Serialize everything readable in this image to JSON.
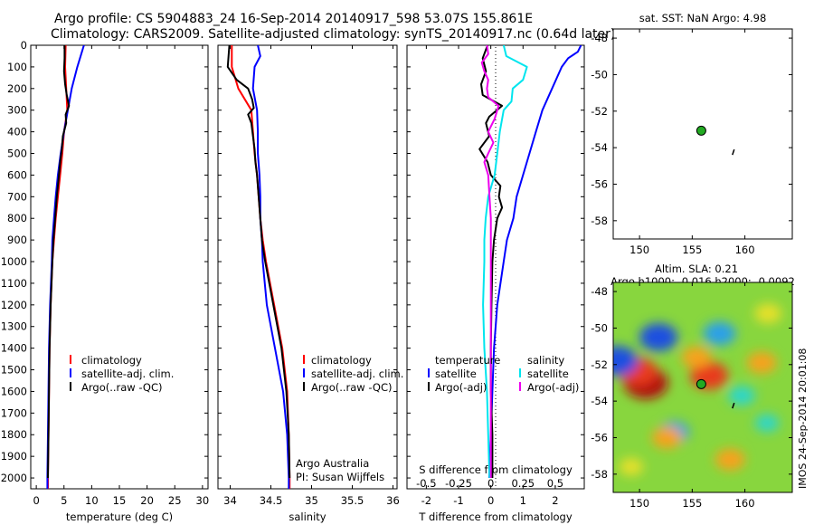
{
  "header": {
    "line1": "Argo profile: CS 5904883_24 16-Sep-2014 20140917_598 53.07S 155.861E",
    "line2": "Climatology: CARS2009. Satellite-adjusted climatology: synTS_20140917.nc (0.64d later)"
  },
  "colors": {
    "climatology": "#ff0000",
    "satellite": "#0000ff",
    "argo": "#000000",
    "sal_satellite": "#00e5ee",
    "sal_argo": "#ee00ee"
  },
  "depth_ticks": [
    "0",
    "100",
    "200",
    "300",
    "400",
    "500",
    "600",
    "700",
    "800",
    "900",
    "1000",
    "1100",
    "1200",
    "1300",
    "1400",
    "1500",
    "1600",
    "1700",
    "1800",
    "1900",
    "2000"
  ],
  "panels": {
    "temperature": {
      "xlabel": "temperature (deg C)",
      "xticks": [
        "0",
        "5",
        "10",
        "15",
        "20",
        "25",
        "30"
      ],
      "legend": [
        "climatology",
        "satellite-adj. clim.",
        "Argo(..raw -QC)"
      ]
    },
    "salinity": {
      "xlabel": "salinity",
      "xticks": [
        "34",
        "34.5",
        "35",
        "35.5",
        "36"
      ],
      "legend": [
        "climatology",
        "satellite-adj. clim.",
        "Argo(..raw -QC)"
      ],
      "note1": "Argo Australia",
      "note2": "PI: Susan Wijffels"
    },
    "difference": {
      "xlabel": "T difference from climatology",
      "xticks": [
        "-2",
        "-1",
        "0",
        "1",
        "2"
      ],
      "s_title": "S difference from climatology",
      "s_ticks": [
        "-0.5",
        "-0.25",
        "0",
        "0.25",
        "0.5"
      ],
      "legend_t_title": "temperature",
      "legend_t": [
        "satellite",
        "Argo(-adj)"
      ],
      "legend_s_title": "salinity",
      "legend_s": [
        "satellite",
        "Argo(-adj)"
      ]
    },
    "sst_map": {
      "title": "sat. SST: NaN Argo: 4.98",
      "yticks": [
        "-48",
        "-50",
        "-52",
        "-54",
        "-56",
        "-58"
      ],
      "xticks": [
        "150",
        "155",
        "160"
      ]
    },
    "sla_map": {
      "title1": "Altim. SLA: 0.21",
      "title2": "Argo h1000: -0.016 h2000: -0.0092",
      "yticks": [
        "-48",
        "-50",
        "-52",
        "-54",
        "-56",
        "-58"
      ],
      "xticks": [
        "150",
        "155",
        "160"
      ],
      "stamp": "IMOS 24-Sep-2014 20:01:08"
    }
  },
  "chart_data": [
    {
      "type": "line",
      "panel": "temperature",
      "xlabel": "temperature (deg C)",
      "xlim": [
        -1,
        31
      ],
      "ylim": [
        2050,
        0
      ],
      "series": [
        {
          "name": "climatology",
          "y": [
            0,
            100,
            200,
            300,
            400,
            500,
            600,
            700,
            800,
            900,
            1000,
            1200,
            1400,
            1600,
            1800,
            2000,
            2050
          ],
          "values": [
            5.3,
            5.2,
            5.4,
            5.6,
            5.0,
            4.7,
            4.3,
            3.9,
            3.5,
            3.2,
            2.9,
            2.6,
            2.4,
            2.3,
            2.2,
            2.1,
            2.1
          ]
        },
        {
          "name": "satellite-adj. clim.",
          "y": [
            0,
            100,
            200,
            300,
            400,
            500,
            600,
            700,
            800,
            900,
            1000,
            1200,
            1400,
            1600,
            1800,
            2000,
            2050
          ],
          "values": [
            8.6,
            7.4,
            6.4,
            5.7,
            5.0,
            4.4,
            3.9,
            3.5,
            3.2,
            2.9,
            2.8,
            2.5,
            2.3,
            2.2,
            2.1,
            2.0,
            2.0
          ]
        },
        {
          "name": "Argo(..raw -QC)",
          "y": [
            0,
            60,
            120,
            180,
            230,
            280,
            320,
            360,
            420,
            480,
            540,
            600,
            700,
            800,
            900,
            1000,
            1200,
            1400,
            1600,
            1800,
            2000
          ],
          "values": [
            5.1,
            5.1,
            5.0,
            5.2,
            5.5,
            5.9,
            5.3,
            5.4,
            4.8,
            4.6,
            4.3,
            4.1,
            3.7,
            3.4,
            3.1,
            2.9,
            2.6,
            2.4,
            2.3,
            2.2,
            2.1
          ]
        }
      ]
    },
    {
      "type": "line",
      "panel": "salinity",
      "xlabel": "salinity",
      "xlim": [
        33.85,
        36.05
      ],
      "ylim": [
        2050,
        0
      ],
      "series": [
        {
          "name": "climatology",
          "y": [
            0,
            100,
            200,
            300,
            400,
            500,
            600,
            700,
            800,
            900,
            1000,
            1200,
            1400,
            1600,
            1800,
            2000,
            2050
          ],
          "values": [
            34.02,
            34.02,
            34.1,
            34.26,
            34.28,
            34.3,
            34.33,
            34.35,
            34.37,
            34.4,
            34.44,
            34.54,
            34.64,
            34.7,
            34.72,
            34.73,
            34.73
          ]
        },
        {
          "name": "satellite-adj. clim.",
          "y": [
            0,
            50,
            100,
            200,
            300,
            400,
            500,
            600,
            700,
            800,
            900,
            1000,
            1200,
            1400,
            1600,
            1800,
            2000,
            2050
          ],
          "values": [
            34.34,
            34.37,
            34.3,
            34.28,
            34.33,
            34.34,
            34.34,
            34.36,
            34.37,
            34.37,
            34.39,
            34.4,
            34.45,
            34.55,
            34.65,
            34.7,
            34.72,
            34.72
          ]
        },
        {
          "name": "Argo(..raw -QC)",
          "y": [
            0,
            50,
            100,
            160,
            200,
            250,
            290,
            320,
            360,
            420,
            480,
            540,
            600,
            700,
            800,
            900,
            1000,
            1200,
            1400,
            1600,
            1800,
            2000
          ],
          "values": [
            33.99,
            33.98,
            33.97,
            34.08,
            34.22,
            34.27,
            34.29,
            34.22,
            34.26,
            34.28,
            34.3,
            34.31,
            34.33,
            34.35,
            34.37,
            34.39,
            34.43,
            34.53,
            34.63,
            34.69,
            34.72,
            34.73
          ]
        }
      ]
    },
    {
      "type": "line",
      "panel": "difference",
      "xlabel": "T difference from climatology",
      "xlim": [
        -2.6,
        2.9
      ],
      "s_xlim": [
        -0.65,
        0.725
      ],
      "ylim": [
        2050,
        0
      ],
      "series": [
        {
          "name": "temperature satellite",
          "axis": "T",
          "y": [
            0,
            30,
            60,
            100,
            200,
            300,
            400,
            500,
            600,
            700,
            800,
            900,
            1000,
            1200,
            1400,
            1600,
            1800,
            2000
          ],
          "values": [
            2.8,
            2.7,
            2.4,
            2.2,
            1.9,
            1.6,
            1.4,
            1.2,
            1.0,
            0.8,
            0.7,
            0.5,
            0.4,
            0.2,
            0.1,
            0.05,
            0.0,
            -0.05
          ]
        },
        {
          "name": "temperature Argo(-adj)",
          "axis": "T",
          "y": [
            0,
            60,
            120,
            180,
            230,
            280,
            330,
            360,
            420,
            480,
            540,
            600,
            650,
            700,
            750,
            800,
            900,
            1000,
            1200,
            1400,
            1600,
            1800,
            2000
          ],
          "values": [
            -0.1,
            -0.25,
            -0.15,
            -0.3,
            -0.25,
            0.35,
            -0.05,
            -0.15,
            -0.05,
            -0.35,
            -0.1,
            0.0,
            0.3,
            0.25,
            0.35,
            0.2,
            0.1,
            0.05,
            0.02,
            0.0,
            0.0,
            0.05,
            0.05
          ]
        },
        {
          "name": "salinity satellite",
          "axis": "S",
          "y": [
            0,
            50,
            100,
            160,
            200,
            260,
            300,
            400,
            500,
            600,
            700,
            800,
            900,
            1000,
            1200,
            1400,
            1600,
            1800,
            2000
          ],
          "values": [
            0.1,
            0.12,
            0.28,
            0.25,
            0.17,
            0.16,
            0.1,
            0.07,
            0.05,
            0.03,
            -0.02,
            -0.04,
            -0.05,
            -0.05,
            -0.06,
            -0.05,
            -0.03,
            -0.02,
            -0.01
          ]
        },
        {
          "name": "salinity Argo(-adj)",
          "axis": "S",
          "y": [
            0,
            40,
            80,
            120,
            160,
            200,
            240,
            280,
            300,
            340,
            400,
            450,
            500,
            540,
            600,
            700,
            800,
            900,
            1000,
            1200,
            1400,
            1600,
            1800,
            2000
          ],
          "values": [
            -0.03,
            -0.02,
            -0.07,
            -0.05,
            -0.02,
            -0.03,
            -0.02,
            0.06,
            0.05,
            0.03,
            -0.02,
            0.02,
            -0.02,
            -0.05,
            -0.02,
            -0.01,
            0.0,
            0.0,
            0.0,
            0.0,
            0.0,
            0.0,
            0.0,
            0.0
          ]
        }
      ]
    },
    {
      "type": "scatter",
      "panel": "sst_map",
      "xlim": [
        147.5,
        164.5
      ],
      "ylim": [
        -59,
        -47.5
      ],
      "points": [
        {
          "x": 155.861,
          "y": -53.07
        }
      ]
    },
    {
      "type": "heatmap",
      "panel": "sla_map",
      "xlim": [
        147.5,
        164.5
      ],
      "ylim": [
        -59,
        -47.5
      ],
      "points": [
        {
          "x": 155.861,
          "y": -53.07
        }
      ],
      "anomalies": [
        {
          "x": 150.6,
          "y": -53.0,
          "value": 1.0
        },
        {
          "x": 149.9,
          "y": -52.4,
          "value": 0.8
        },
        {
          "x": 147.9,
          "y": -51.8,
          "value": -0.9
        },
        {
          "x": 151.8,
          "y": -50.5,
          "value": -0.8
        },
        {
          "x": 156.6,
          "y": -52.6,
          "value": 0.8
        },
        {
          "x": 155.4,
          "y": -51.6,
          "value": 0.5
        },
        {
          "x": 157.6,
          "y": -50.3,
          "value": -0.6
        },
        {
          "x": 162.2,
          "y": -49.2,
          "value": 0.4
        },
        {
          "x": 161.6,
          "y": -51.9,
          "value": 0.5
        },
        {
          "x": 153.3,
          "y": -55.7,
          "value": -0.5
        },
        {
          "x": 152.6,
          "y": -56.0,
          "value": 0.5
        },
        {
          "x": 159.7,
          "y": -53.7,
          "value": -0.4
        },
        {
          "x": 158.6,
          "y": -57.2,
          "value": 0.5
        },
        {
          "x": 162.1,
          "y": -55.2,
          "value": -0.3
        },
        {
          "x": 149.2,
          "y": -57.6,
          "value": 0.3
        }
      ]
    }
  ]
}
